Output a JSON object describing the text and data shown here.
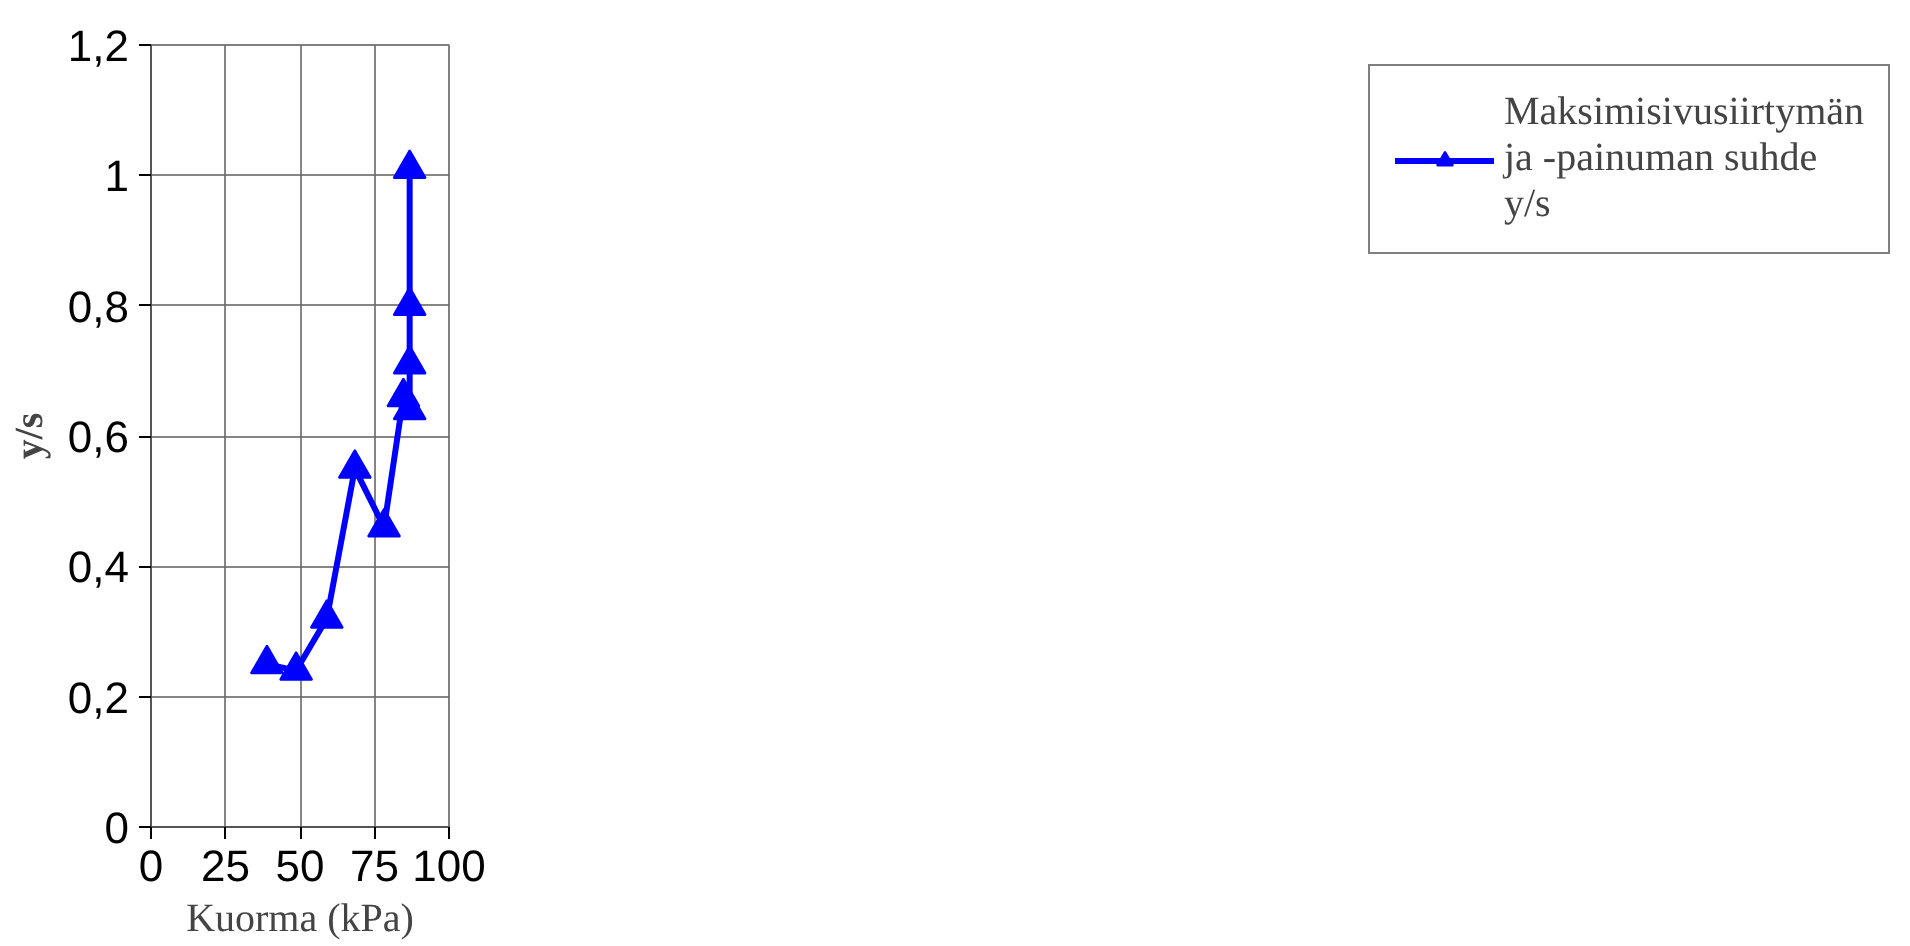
{
  "chart_data": {
    "type": "line",
    "xlabel": "Kuorma (kPa)",
    "ylabel": "y/s",
    "xlim": [
      0,
      100
    ],
    "xticks": [
      0,
      25,
      50,
      75,
      100
    ],
    "ylim": [
      0,
      1.2
    ],
    "yticks": [
      0,
      {
        "value": 0.2,
        "label": "0,2"
      },
      {
        "value": 0.4,
        "label": "0,4"
      },
      {
        "value": 0.6,
        "label": "0,6"
      },
      {
        "value": 0.8,
        "label": "0,8"
      },
      1,
      {
        "value": 1.2,
        "label": "1,2"
      }
    ],
    "grid": true,
    "legend": "right",
    "marker": "triangle",
    "line_style": "solid",
    "series": [
      {
        "name": "Maksimisivusiirtymän ja -painuman suhde y/s",
        "color": "#0000ff",
        "x": [
          38.9,
          48.7,
          59,
          68.4,
          78.2,
          84.7,
          86.8,
          86.8,
          86.8,
          86.8
        ],
        "values": [
          0.25,
          0.24,
          0.32,
          0.55,
          0.46,
          0.66,
          0.64,
          0.71,
          0.8,
          1.01
        ]
      }
    ]
  }
}
